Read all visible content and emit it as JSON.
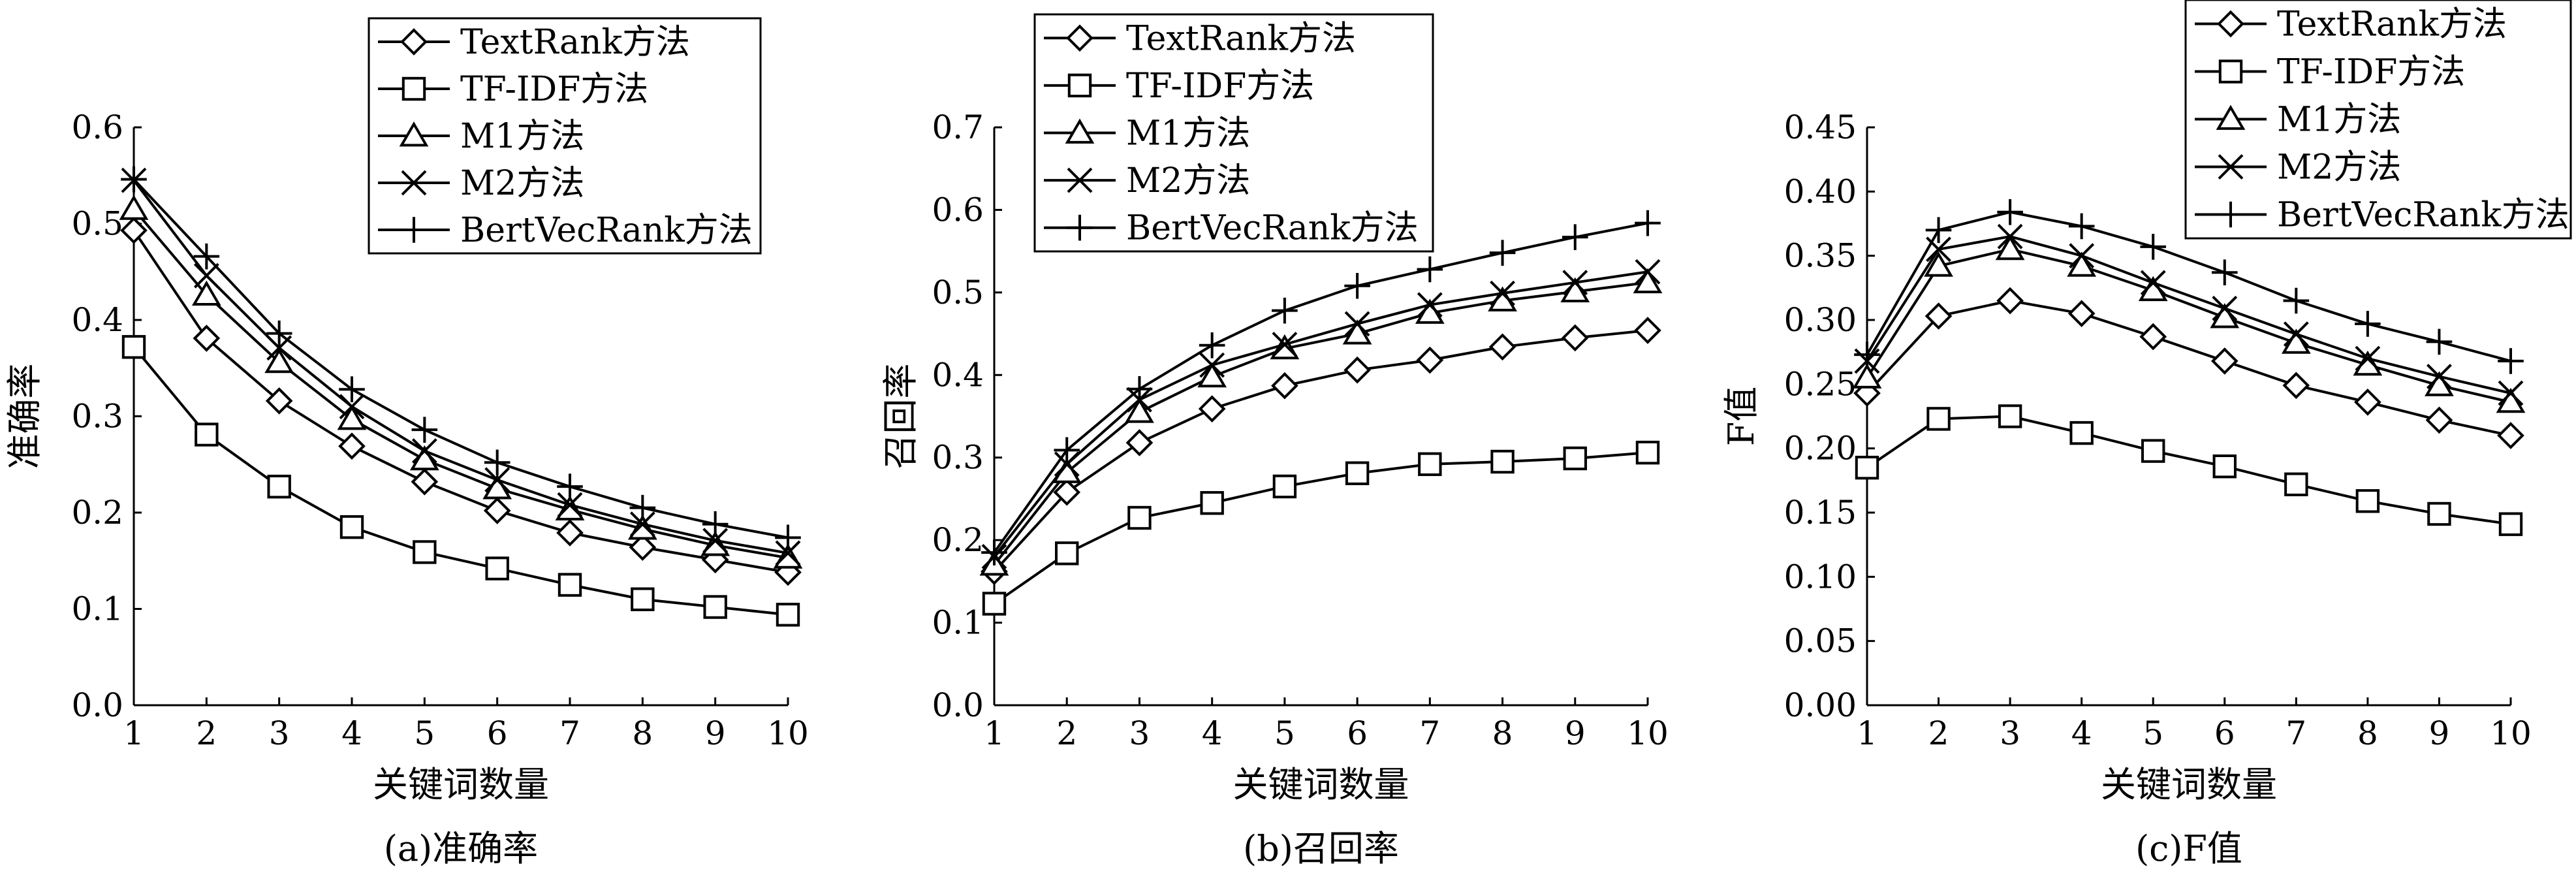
{
  "chart_data": [
    {
      "type": "line",
      "title": "(a)准确率",
      "xlabel": "关键词数量",
      "ylabel": "准确率",
      "x": [
        1,
        2,
        3,
        4,
        5,
        6,
        7,
        8,
        9,
        10
      ],
      "xlim": [
        1,
        10
      ],
      "ylim": [
        0,
        0.6
      ],
      "yticks": [
        "0.0",
        "0.1",
        "0.2",
        "0.3",
        "0.4",
        "0.5",
        "0.6"
      ],
      "legend_position": "top",
      "series": [
        {
          "name": "TextRank方法",
          "marker": "diamond",
          "values": [
            0.493,
            0.381,
            0.316,
            0.269,
            0.232,
            0.202,
            0.179,
            0.164,
            0.151,
            0.138
          ]
        },
        {
          "name": "TF-IDF方法",
          "marker": "square",
          "values": [
            0.372,
            0.281,
            0.227,
            0.185,
            0.159,
            0.142,
            0.125,
            0.11,
            0.102,
            0.094
          ]
        },
        {
          "name": "M1方法",
          "marker": "triangle",
          "values": [
            0.515,
            0.426,
            0.356,
            0.297,
            0.255,
            0.225,
            0.203,
            0.183,
            0.166,
            0.153
          ]
        },
        {
          "name": "M2方法",
          "marker": "x",
          "values": [
            0.545,
            0.446,
            0.371,
            0.31,
            0.264,
            0.234,
            0.208,
            0.188,
            0.171,
            0.158
          ]
        },
        {
          "name": "BertVecRank方法",
          "marker": "plus",
          "values": [
            0.546,
            0.466,
            0.386,
            0.328,
            0.286,
            0.252,
            0.227,
            0.205,
            0.188,
            0.174
          ]
        }
      ]
    },
    {
      "type": "line",
      "title": "(b)召回率",
      "xlabel": "关键词数量",
      "ylabel": "召回率",
      "x": [
        1,
        2,
        3,
        4,
        5,
        6,
        7,
        8,
        9,
        10
      ],
      "xlim": [
        1,
        10
      ],
      "ylim": [
        0,
        0.7
      ],
      "yticks": [
        "0.0",
        "0.1",
        "0.2",
        "0.3",
        "0.4",
        "0.5",
        "0.6",
        "0.7"
      ],
      "legend_position": "top",
      "series": [
        {
          "name": "TextRank方法",
          "marker": "diamond",
          "values": [
            0.162,
            0.258,
            0.318,
            0.359,
            0.387,
            0.406,
            0.418,
            0.434,
            0.445,
            0.454
          ]
        },
        {
          "name": "TF-IDF方法",
          "marker": "square",
          "values": [
            0.123,
            0.184,
            0.227,
            0.245,
            0.265,
            0.281,
            0.292,
            0.295,
            0.299,
            0.306
          ]
        },
        {
          "name": "M1方法",
          "marker": "triangle",
          "values": [
            0.17,
            0.282,
            0.355,
            0.398,
            0.432,
            0.45,
            0.475,
            0.49,
            0.501,
            0.512
          ]
        },
        {
          "name": "M2方法",
          "marker": "x",
          "values": [
            0.18,
            0.292,
            0.37,
            0.412,
            0.437,
            0.462,
            0.485,
            0.499,
            0.512,
            0.525
          ]
        },
        {
          "name": "BertVecRank方法",
          "marker": "plus",
          "values": [
            0.185,
            0.309,
            0.383,
            0.436,
            0.478,
            0.508,
            0.528,
            0.548,
            0.567,
            0.584
          ]
        }
      ]
    },
    {
      "type": "line",
      "title": "(c)F值",
      "xlabel": "关键词数量",
      "ylabel": "F值",
      "x": [
        1,
        2,
        3,
        4,
        5,
        6,
        7,
        8,
        9,
        10
      ],
      "xlim": [
        1,
        10
      ],
      "ylim": [
        0,
        0.45
      ],
      "yticks": [
        "0.00",
        "0.05",
        "0.10",
        "0.15",
        "0.20",
        "0.25",
        "0.30",
        "0.35",
        "0.40",
        "0.45"
      ],
      "legend_position": "top",
      "series": [
        {
          "name": "TextRank方法",
          "marker": "diamond",
          "values": [
            0.243,
            0.303,
            0.315,
            0.305,
            0.287,
            0.268,
            0.249,
            0.236,
            0.222,
            0.21
          ]
        },
        {
          "name": "TF-IDF方法",
          "marker": "square",
          "values": [
            0.185,
            0.223,
            0.225,
            0.212,
            0.198,
            0.186,
            0.172,
            0.159,
            0.149,
            0.141
          ]
        },
        {
          "name": "M1方法",
          "marker": "triangle",
          "values": [
            0.255,
            0.342,
            0.355,
            0.342,
            0.323,
            0.302,
            0.282,
            0.265,
            0.249,
            0.236
          ]
        },
        {
          "name": "M2方法",
          "marker": "x",
          "values": [
            0.268,
            0.355,
            0.365,
            0.35,
            0.329,
            0.309,
            0.289,
            0.27,
            0.256,
            0.243
          ]
        },
        {
          "name": "BertVecRank方法",
          "marker": "plus",
          "values": [
            0.273,
            0.37,
            0.384,
            0.373,
            0.357,
            0.337,
            0.315,
            0.297,
            0.283,
            0.268
          ]
        }
      ]
    }
  ]
}
